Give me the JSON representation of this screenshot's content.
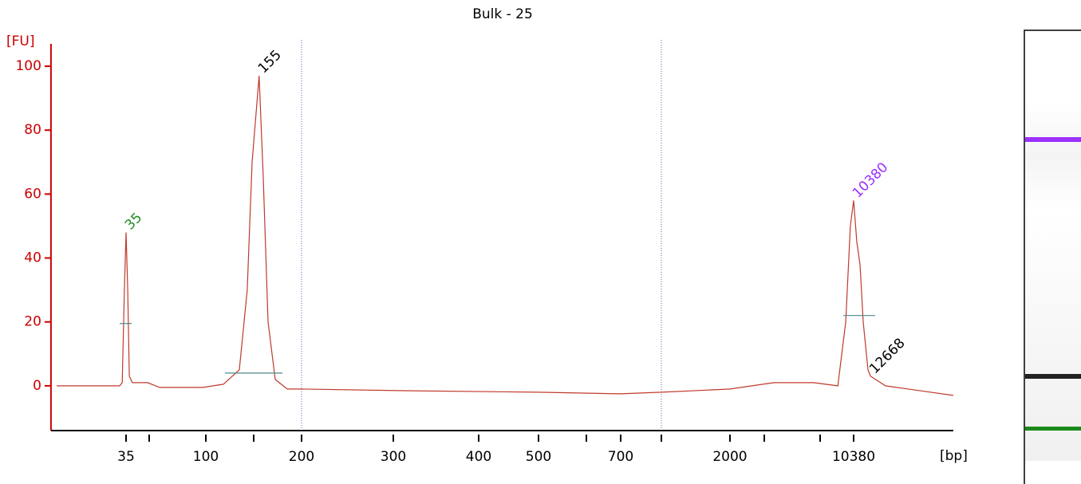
{
  "chart_data": {
    "type": "line",
    "title": "Bulk - 25",
    "y_unit": "[FU]",
    "x_unit": "[bp]",
    "color": "#c0392b",
    "axis_color": "#cc0000",
    "x": [
      12,
      31.7,
      33,
      34.1,
      35,
      35.9,
      36.8,
      38.6,
      48.8,
      56.8,
      96.2,
      116,
      132.8,
      142,
      148,
      155,
      158.9,
      163.5,
      170.7,
      183.5,
      200,
      305.7,
      500,
      700,
      1000,
      2000,
      3469,
      6350,
      8617,
      9460,
      9990,
      10380,
      10777,
      11190,
      11620,
      12290,
      12668,
      15100,
      33500
    ],
    "values": [
      0,
      0,
      1,
      30,
      48,
      30,
      3,
      1,
      1,
      -0.5,
      -0.5,
      0.5,
      5,
      30,
      70,
      97,
      65,
      20,
      2,
      -1,
      -1,
      -1.5,
      -2,
      -2.5,
      -2,
      -1,
      1,
      1,
      0,
      20,
      50,
      58,
      45,
      38,
      20,
      5,
      3,
      0,
      -3
    ],
    "peaks": [
      {
        "x": 35,
        "y": 48,
        "color": "#228b22"
      },
      {
        "x": 155,
        "y": 97,
        "color": "#000000"
      },
      {
        "x": 10380,
        "y": 58,
        "color": "#9b30ff"
      },
      {
        "x": 12668,
        "y": 3,
        "color": "#000000"
      }
    ],
    "region_lines": [
      {
        "x": [
          31.7,
          38.2
        ],
        "y": 19.5
      },
      {
        "x": [
          117.6,
          178.3
        ],
        "y": 4
      },
      {
        "x": [
          9200,
          13360
        ],
        "y": 22
      }
    ],
    "ref_lines": [
      200,
      1000
    ],
    "xlim": [
      11,
      33500
    ],
    "ylim": [
      -14,
      107
    ],
    "yticks": [
      0,
      20,
      40,
      60,
      80,
      100
    ],
    "xticks": [
      35,
      {
        "value": 50,
        "label": null
      },
      100,
      {
        "value": 150,
        "label": null
      },
      200,
      300,
      400,
      500,
      {
        "value": 600,
        "label": null
      },
      700,
      {
        "value": 1000,
        "label": null
      },
      2000,
      {
        "value": 3000,
        "label": null
      },
      {
        "value": 7000,
        "label": null
      },
      10380
    ]
  }
}
